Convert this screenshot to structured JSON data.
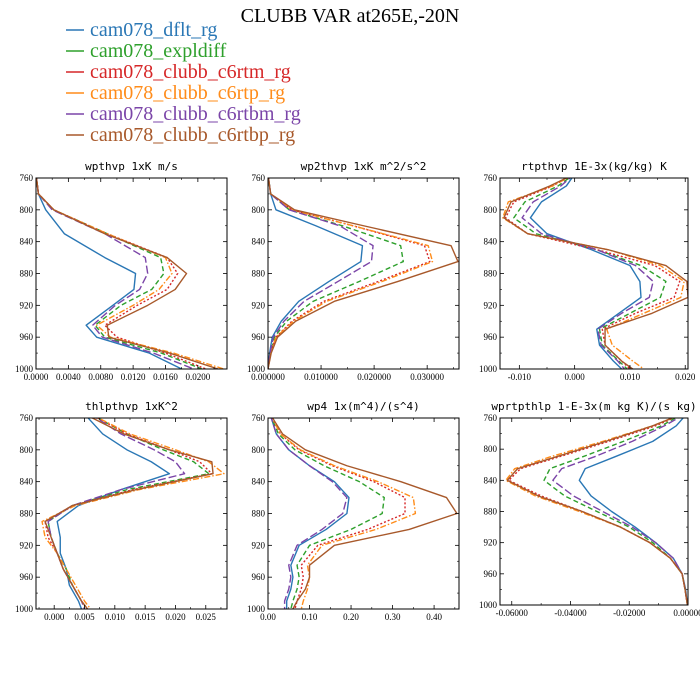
{
  "title": "CLUBB VAR at265E,-20N",
  "legend": [
    {
      "label": "cam078_dflt_rg",
      "color": "#2a77b5",
      "dash": "solid"
    },
    {
      "label": "cam078_expldiff",
      "color": "#2ea02c",
      "dash": "dash"
    },
    {
      "label": "cam078_clubb_c6rtm_rg",
      "color": "#d62728",
      "dash": "dot"
    },
    {
      "label": "cam078_clubb_c6rtp_rg",
      "color": "#ff8c1a",
      "dash": "dashdot"
    },
    {
      "label": "cam078_clubb_c6rtbm_rg",
      "color": "#7b45a8",
      "dash": "longdash"
    },
    {
      "label": "cam078_clubb_c6rtbp_rg",
      "color": "#a8592b",
      "dash": "solid"
    }
  ],
  "chart_data": [
    {
      "type": "line",
      "title": "wpthvp  1xK m/s",
      "xlim": [
        0.0,
        0.0236
      ],
      "ylim": [
        760,
        1000
      ],
      "xticks": [
        0.0,
        0.004,
        0.008,
        0.012,
        0.016,
        0.02
      ],
      "xtick_labels": [
        "0.0000",
        "0.0040",
        "0.0080",
        "0.0120",
        "0.0160",
        "0.0200"
      ],
      "yticks": [
        760,
        800,
        840,
        880,
        920,
        960,
        1000
      ],
      "y": [
        755,
        780,
        800,
        830,
        860,
        880,
        900,
        920,
        945,
        960,
        980,
        1000
      ],
      "series": [
        {
          "name": "cam078_dflt_rg",
          "values": [
            0.0,
            0.0003,
            0.0012,
            0.0035,
            0.0085,
            0.0123,
            0.0121,
            0.0095,
            0.0062,
            0.0075,
            0.014,
            0.018
          ]
        },
        {
          "name": "cam078_expldiff",
          "values": [
            0.0,
            0.0003,
            0.0022,
            0.0088,
            0.0154,
            0.0158,
            0.0143,
            0.0105,
            0.0073,
            0.0085,
            0.0155,
            0.0205
          ]
        },
        {
          "name": "cam078_clubb_c6rtm_rg",
          "values": [
            0.0,
            0.0003,
            0.0022,
            0.0088,
            0.0162,
            0.0175,
            0.0162,
            0.0125,
            0.0085,
            0.01,
            0.016,
            0.021
          ]
        },
        {
          "name": "cam078_clubb_c6rtp_rg",
          "values": [
            0.0,
            0.0003,
            0.0022,
            0.0088,
            0.016,
            0.0168,
            0.0152,
            0.012,
            0.0075,
            0.0092,
            0.017,
            0.0232
          ]
        },
        {
          "name": "cam078_clubb_c6rtbm_rg",
          "values": [
            0.0,
            0.0003,
            0.002,
            0.0085,
            0.0135,
            0.0138,
            0.0128,
            0.0098,
            0.007,
            0.0082,
            0.0145,
            0.0195
          ]
        },
        {
          "name": "cam078_clubb_c6rtbp_rg",
          "values": [
            0.0,
            0.0003,
            0.0022,
            0.0085,
            0.0162,
            0.0186,
            0.0172,
            0.0138,
            0.0088,
            0.009,
            0.0165,
            0.0225
          ]
        }
      ]
    },
    {
      "type": "line",
      "title": "wp2thvp  1xK m^2/s^2",
      "xlim": [
        0.0,
        0.036
      ],
      "ylim": [
        760,
        1000
      ],
      "xticks": [
        0.0,
        0.01,
        0.02,
        0.03
      ],
      "xtick_labels": [
        "0.000000",
        "0.010000",
        "0.020000",
        "0.030000"
      ],
      "yticks": [
        760,
        800,
        840,
        880,
        920,
        960,
        1000
      ],
      "y": [
        755,
        780,
        800,
        820,
        845,
        865,
        890,
        915,
        940,
        960,
        980,
        1000
      ],
      "series": [
        {
          "name": "cam078_dflt_rg",
          "values": [
            0.0,
            0.0005,
            0.0015,
            0.009,
            0.0178,
            0.0175,
            0.0115,
            0.0058,
            0.0025,
            0.0008,
            0.0003,
            0.0
          ]
        },
        {
          "name": "cam078_expldiff",
          "values": [
            0.0,
            0.0005,
            0.004,
            0.014,
            0.025,
            0.0255,
            0.0172,
            0.0085,
            0.0035,
            0.0012,
            0.0005,
            0.0
          ]
        },
        {
          "name": "cam078_clubb_c6rtm_rg",
          "values": [
            0.0,
            0.0005,
            0.0045,
            0.016,
            0.0295,
            0.0305,
            0.0208,
            0.0105,
            0.0045,
            0.0015,
            0.0005,
            0.0
          ]
        },
        {
          "name": "cam078_clubb_c6rtp_rg",
          "values": [
            0.0,
            0.0005,
            0.0045,
            0.016,
            0.0302,
            0.031,
            0.0215,
            0.011,
            0.0048,
            0.0015,
            0.0005,
            0.0
          ]
        },
        {
          "name": "cam078_clubb_c6rtbm_rg",
          "values": [
            0.0,
            0.0005,
            0.004,
            0.0135,
            0.0198,
            0.0195,
            0.0132,
            0.0068,
            0.003,
            0.001,
            0.0004,
            0.0
          ]
        },
        {
          "name": "cam078_clubb_c6rtbp_rg",
          "values": [
            0.0,
            0.0005,
            0.005,
            0.018,
            0.0345,
            0.0358,
            0.0245,
            0.0125,
            0.0052,
            0.0018,
            0.0006,
            0.0
          ]
        }
      ]
    },
    {
      "type": "line",
      "title": "rtpthvp  1E-3x(kg/kg) K",
      "xlim": [
        -0.0135,
        0.0205
      ],
      "ylim": [
        760,
        1000
      ],
      "xticks": [
        -0.01,
        0.0,
        0.01,
        0.02
      ],
      "xtick_labels": [
        "-0.010",
        "0.000",
        "0.010",
        "0.020"
      ],
      "yticks": [
        760,
        800,
        840,
        880,
        920,
        960,
        1000
      ],
      "y": [
        755,
        770,
        790,
        810,
        830,
        850,
        870,
        890,
        910,
        930,
        950,
        970,
        990,
        1000
      ],
      "series": [
        {
          "name": "cam078_dflt_rg",
          "values": [
            0.0,
            -0.0015,
            -0.006,
            -0.008,
            -0.005,
            0.003,
            0.01,
            0.0118,
            0.012,
            0.008,
            0.004,
            0.0045,
            0.007,
            0.0085
          ]
        },
        {
          "name": "cam078_expldiff",
          "values": [
            0.0,
            -0.003,
            -0.009,
            -0.011,
            -0.007,
            0.004,
            0.012,
            0.0165,
            0.0155,
            0.01,
            0.0045,
            0.005,
            0.008,
            0.0095
          ]
        },
        {
          "name": "cam078_clubb_c6rtm_rg",
          "values": [
            0.0,
            -0.004,
            -0.011,
            -0.0125,
            -0.0085,
            0.004,
            0.0145,
            0.019,
            0.018,
            0.011,
            0.005,
            0.0055,
            0.0085,
            0.01
          ]
        },
        {
          "name": "cam078_clubb_c6rtp_rg",
          "values": [
            0.0,
            -0.004,
            -0.012,
            -0.013,
            -0.0085,
            0.006,
            0.0155,
            0.0198,
            0.0192,
            0.0125,
            0.0058,
            0.0068,
            0.0105,
            0.0125
          ]
        },
        {
          "name": "cam078_clubb_c6rtbm_rg",
          "values": [
            0.0,
            -0.0025,
            -0.0075,
            -0.0095,
            -0.006,
            0.004,
            0.011,
            0.0142,
            0.0135,
            0.0085,
            0.0042,
            0.0048,
            0.0078,
            0.009
          ]
        },
        {
          "name": "cam078_clubb_c6rtbp_rg",
          "values": [
            0.0,
            -0.0045,
            -0.0115,
            -0.0128,
            -0.0085,
            0.006,
            0.0165,
            0.0203,
            0.0205,
            0.014,
            0.0055,
            0.0055,
            0.0085,
            0.0105
          ]
        }
      ]
    },
    {
      "type": "line",
      "title": "thlpthvp  1xK^2",
      "xlim": [
        -0.003,
        0.0285
      ],
      "ylim": [
        760,
        1000
      ],
      "xticks": [
        0.0,
        0.005,
        0.01,
        0.015,
        0.02,
        0.025
      ],
      "xtick_labels": [
        "0.000",
        "0.005",
        "0.010",
        "0.015",
        "0.020",
        "0.025"
      ],
      "yticks": [
        760,
        800,
        840,
        880,
        920,
        960,
        1000
      ],
      "y": [
        755,
        780,
        800,
        815,
        830,
        850,
        870,
        890,
        910,
        930,
        950,
        970,
        990,
        1000
      ],
      "series": [
        {
          "name": "cam078_dflt_rg",
          "values": [
            0.005,
            0.008,
            0.012,
            0.016,
            0.019,
            0.011,
            0.004,
            0.0005,
            0.001,
            0.001,
            0.002,
            0.0025,
            0.004,
            0.0045
          ]
        },
        {
          "name": "cam078_expldiff",
          "values": [
            0.006,
            0.012,
            0.018,
            0.023,
            0.0255,
            0.012,
            0.003,
            -0.001,
            -0.0005,
            0.0005,
            0.002,
            0.003,
            0.0045,
            0.0055
          ]
        },
        {
          "name": "cam078_clubb_c6rtm_rg",
          "values": [
            0.006,
            0.012,
            0.019,
            0.024,
            0.026,
            0.013,
            0.003,
            -0.0015,
            -0.001,
            0.0005,
            0.0015,
            0.003,
            0.0045,
            0.0055
          ]
        },
        {
          "name": "cam078_clubb_c6rtp_rg",
          "values": [
            0.006,
            0.0125,
            0.02,
            0.0255,
            0.028,
            0.014,
            0.0035,
            -0.002,
            -0.0015,
            0.0005,
            0.002,
            0.0035,
            0.005,
            0.006
          ]
        },
        {
          "name": "cam078_clubb_c6rtbm_rg",
          "values": [
            0.006,
            0.011,
            0.0165,
            0.02,
            0.0215,
            0.011,
            0.003,
            -0.001,
            -0.0005,
            0.0005,
            0.0015,
            0.003,
            0.0045,
            0.005
          ]
        },
        {
          "name": "cam078_clubb_c6rtbp_rg",
          "values": [
            0.005,
            0.0115,
            0.019,
            0.026,
            0.0262,
            0.0135,
            0.003,
            -0.0015,
            -0.0005,
            0.0005,
            0.0015,
            0.003,
            0.0045,
            0.0055
          ]
        }
      ]
    },
    {
      "type": "line",
      "title": "wp4  1x(m^4)/(s^4)",
      "xlim": [
        0.0,
        0.46
      ],
      "ylim": [
        760,
        1000
      ],
      "xticks": [
        0.0,
        0.1,
        0.2,
        0.3,
        0.4
      ],
      "xtick_labels": [
        "0.00",
        "0.10",
        "0.20",
        "0.30",
        "0.40"
      ],
      "yticks": [
        760,
        800,
        840,
        880,
        920,
        960,
        1000
      ],
      "y": [
        755,
        780,
        800,
        820,
        840,
        860,
        880,
        900,
        920,
        945,
        960,
        975,
        990,
        1000
      ],
      "series": [
        {
          "name": "cam078_dflt_rg",
          "values": [
            0.005,
            0.02,
            0.05,
            0.1,
            0.16,
            0.195,
            0.19,
            0.14,
            0.075,
            0.055,
            0.06,
            0.055,
            0.045,
            0.045
          ]
        },
        {
          "name": "cam078_expldiff",
          "values": [
            0.005,
            0.025,
            0.065,
            0.135,
            0.22,
            0.28,
            0.275,
            0.2,
            0.1,
            0.07,
            0.075,
            0.07,
            0.06,
            0.055
          ]
        },
        {
          "name": "cam078_clubb_c6rtm_rg",
          "values": [
            0.005,
            0.03,
            0.075,
            0.155,
            0.255,
            0.33,
            0.33,
            0.24,
            0.12,
            0.08,
            0.085,
            0.08,
            0.07,
            0.065
          ]
        },
        {
          "name": "cam078_clubb_c6rtp_rg",
          "values": [
            0.005,
            0.03,
            0.078,
            0.16,
            0.265,
            0.35,
            0.355,
            0.26,
            0.13,
            0.095,
            0.1,
            0.095,
            0.085,
            0.08
          ]
        },
        {
          "name": "cam078_clubb_c6rtbm_rg",
          "values": [
            0.005,
            0.02,
            0.05,
            0.1,
            0.155,
            0.19,
            0.18,
            0.13,
            0.07,
            0.05,
            0.055,
            0.05,
            0.04,
            0.04
          ]
        },
        {
          "name": "cam078_clubb_c6rtbp_rg",
          "values": [
            0.005,
            0.035,
            0.09,
            0.19,
            0.32,
            0.43,
            0.455,
            0.34,
            0.16,
            0.1,
            0.1,
            0.09,
            0.07,
            0.06
          ]
        }
      ]
    },
    {
      "type": "line",
      "title": "wprtpthlp  1-E-3x(m kg K)/(s kg)",
      "xlim": [
        -0.064,
        0.0
      ],
      "ylim": [
        760,
        1000
      ],
      "xticks": [
        -0.06,
        -0.04,
        -0.02,
        0.0
      ],
      "xtick_labels": [
        "-0.06000",
        "-0.04000",
        "-0.02000",
        "0.00000"
      ],
      "yticks": [
        760,
        800,
        840,
        880,
        920,
        960,
        1000
      ],
      "y": [
        755,
        770,
        790,
        810,
        825,
        840,
        860,
        880,
        900,
        920,
        940,
        960,
        980,
        1000
      ],
      "series": [
        {
          "name": "cam078_dflt_rg",
          "values": [
            -0.0005,
            -0.004,
            -0.012,
            -0.025,
            -0.035,
            -0.037,
            -0.033,
            -0.026,
            -0.018,
            -0.011,
            -0.005,
            -0.002,
            -0.0008,
            -0.0002
          ]
        },
        {
          "name": "cam078_expldiff",
          "values": [
            -0.002,
            -0.009,
            -0.022,
            -0.036,
            -0.047,
            -0.049,
            -0.042,
            -0.031,
            -0.02,
            -0.012,
            -0.006,
            -0.002,
            -0.001,
            -0.0002
          ]
        },
        {
          "name": "cam078_clubb_c6rtm_rg",
          "values": [
            -0.002,
            -0.011,
            -0.027,
            -0.044,
            -0.057,
            -0.061,
            -0.05,
            -0.036,
            -0.023,
            -0.013,
            -0.006,
            -0.002,
            -0.001,
            -0.0002
          ]
        },
        {
          "name": "cam078_clubb_c6rtp_rg",
          "values": [
            -0.002,
            -0.012,
            -0.029,
            -0.047,
            -0.059,
            -0.062,
            -0.052,
            -0.037,
            -0.023,
            -0.013,
            -0.006,
            -0.002,
            -0.001,
            -0.0002
          ]
        },
        {
          "name": "cam078_clubb_c6rtbm_rg",
          "values": [
            -0.001,
            -0.008,
            -0.019,
            -0.032,
            -0.043,
            -0.046,
            -0.039,
            -0.029,
            -0.019,
            -0.011,
            -0.005,
            -0.002,
            -0.001,
            -0.0002
          ]
        },
        {
          "name": "cam078_clubb_c6rtbp_rg",
          "values": [
            -0.002,
            -0.012,
            -0.028,
            -0.045,
            -0.058,
            -0.0615,
            -0.051,
            -0.036,
            -0.023,
            -0.013,
            -0.006,
            -0.002,
            -0.001,
            -0.0002
          ]
        }
      ]
    }
  ]
}
